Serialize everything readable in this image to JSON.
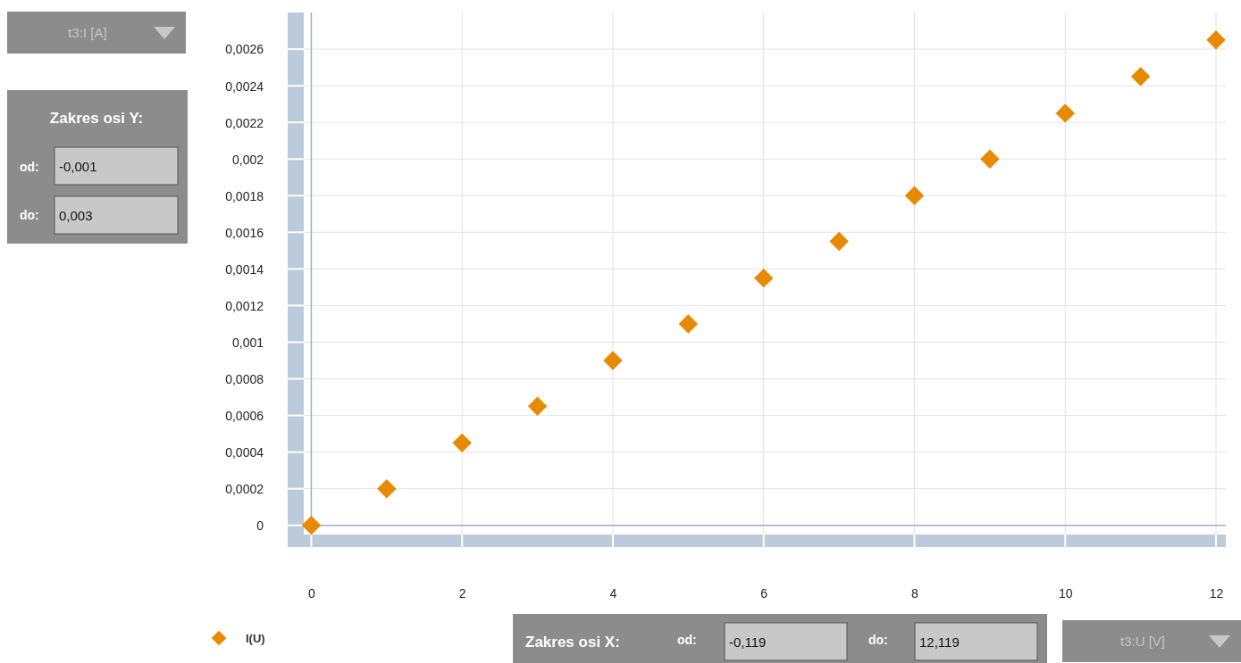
{
  "chart_data": {
    "type": "scatter",
    "x": [
      0,
      1,
      2,
      3,
      4,
      5,
      6,
      7,
      8,
      9,
      10,
      11,
      12
    ],
    "series": [
      {
        "name": "I(U)",
        "color": "#e88a00",
        "values": [
          0,
          0.0002,
          0.00045,
          0.00065,
          0.0009,
          0.0011,
          0.00135,
          0.00155,
          0.0018,
          0.002,
          0.00225,
          0.00245,
          0.00265
        ]
      }
    ],
    "xlim": [
      -0.1,
      12.13
    ],
    "xticks": [
      0,
      2,
      4,
      6,
      8,
      10,
      12
    ],
    "ylim": [
      -5e-05,
      0.0028
    ],
    "yticks": [
      {
        "value": 0,
        "label": "0"
      },
      {
        "value": 0.0002,
        "label": "0,0002"
      },
      {
        "value": 0.0004,
        "label": "0,0004"
      },
      {
        "value": 0.0006,
        "label": "0,0006"
      },
      {
        "value": 0.0008,
        "label": "0,0008"
      },
      {
        "value": 0.001,
        "label": "0,001"
      },
      {
        "value": 0.0012,
        "label": "0,0012"
      },
      {
        "value": 0.0014,
        "label": "0,0014"
      },
      {
        "value": 0.0016,
        "label": "0,0016"
      },
      {
        "value": 0.0018,
        "label": "0,0018"
      },
      {
        "value": 0.002,
        "label": "0,002"
      },
      {
        "value": 0.0022,
        "label": "0,0022"
      },
      {
        "value": 0.0024,
        "label": "0,0024"
      },
      {
        "value": 0.0026,
        "label": "0,0026"
      }
    ],
    "grid": true,
    "legend": "bottom left",
    "marker": "diamond",
    "annotations": [
      "Zakres osi Y:",
      "od:",
      "-0,001",
      "do:",
      "0,003",
      "Zakres osi X:",
      "od:",
      "-0,119",
      "do:",
      "12,119",
      "t3:I [A]",
      "t3:U [V]"
    ]
  }
}
